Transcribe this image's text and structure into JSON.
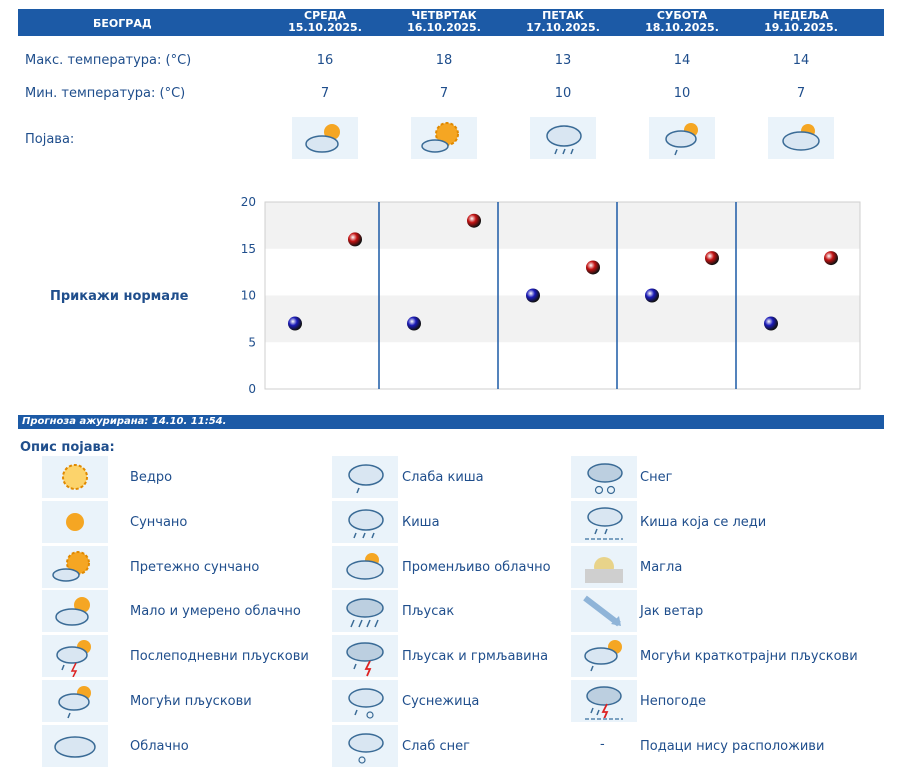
{
  "header": {
    "city": "БЕОГРАД",
    "days": [
      {
        "name": "СРЕДА",
        "date": "15.10.2025."
      },
      {
        "name": "ЧЕТВРТАК",
        "date": "16.10.2025."
      },
      {
        "name": "ПЕТАК",
        "date": "17.10.2025."
      },
      {
        "name": "СУБОТА",
        "date": "18.10.2025."
      },
      {
        "name": "НЕДЕЉА",
        "date": "19.10.2025."
      }
    ]
  },
  "rows": {
    "max_label": "Макс. температура: (°C)",
    "min_label": "Мин. температура: (°C)",
    "phen_label": "Појава:",
    "max": [
      "16",
      "18",
      "13",
      "14",
      "14"
    ],
    "min": [
      "7",
      "7",
      "10",
      "10",
      "7"
    ],
    "icons": [
      "partly-cloudy-icon",
      "mostly-sunny-icon",
      "light-rain-icon",
      "possible-showers-icon",
      "variable-cloudy-icon"
    ]
  },
  "chart_data": {
    "type": "scatter",
    "y_ticks": [
      "0",
      "5",
      "10",
      "15",
      "20"
    ],
    "ylim": [
      0,
      20
    ],
    "grid": true,
    "series": [
      {
        "values": [
          7,
          7,
          10,
          10,
          7
        ],
        "color": "#1a1ab8"
      },
      {
        "values": [
          16,
          18,
          13,
          14,
          14
        ],
        "color": "#c41212"
      }
    ]
  },
  "normals_link": "Прикажи нормале",
  "updated": "Прогноза ажурирана:  14.10. 11:54.",
  "legend": {
    "title": "Опис појава:",
    "items": [
      {
        "icon": "clear-sun-icon",
        "label": "Ведро"
      },
      {
        "icon": "sunny-icon",
        "label": "Сунчано"
      },
      {
        "icon": "mostly-sunny-icon",
        "label": "Претежно сунчано"
      },
      {
        "icon": "partly-cloudy-icon",
        "label": "Мало и умерено облачно"
      },
      {
        "icon": "afternoon-showers-icon",
        "label": "Послеподневни пљускови"
      },
      {
        "icon": "possible-showers-icon",
        "label": "Могући пљускови"
      },
      {
        "icon": "cloudy-icon",
        "label": "Облачно"
      },
      {
        "icon": "light-rain-icon",
        "label": "Слаба киша"
      },
      {
        "icon": "rain-icon",
        "label": "Киша"
      },
      {
        "icon": "variable-cloudy-icon",
        "label": "Променљиво облачно"
      },
      {
        "icon": "shower-icon",
        "label": "Пљусак"
      },
      {
        "icon": "thunderstorm-icon",
        "label": "Пљусак и грмљавина"
      },
      {
        "icon": "sleet-icon",
        "label": "Суснежица"
      },
      {
        "icon": "light-snow-icon",
        "label": "Слаб снег"
      },
      {
        "icon": "snow-icon",
        "label": "Снег"
      },
      {
        "icon": "freezing-rain-icon",
        "label": "Киша која се леди"
      },
      {
        "icon": "fog-icon",
        "label": "Магла"
      },
      {
        "icon": "strong-wind-icon",
        "label": "Јак ветар"
      },
      {
        "icon": "brief-showers-icon",
        "label": "Могући краткотрајни пљускови"
      },
      {
        "icon": "storm-icon",
        "label": "Непогоде"
      },
      {
        "icon": "",
        "label": "Подаци нису расположиви",
        "marker": "-"
      }
    ]
  }
}
